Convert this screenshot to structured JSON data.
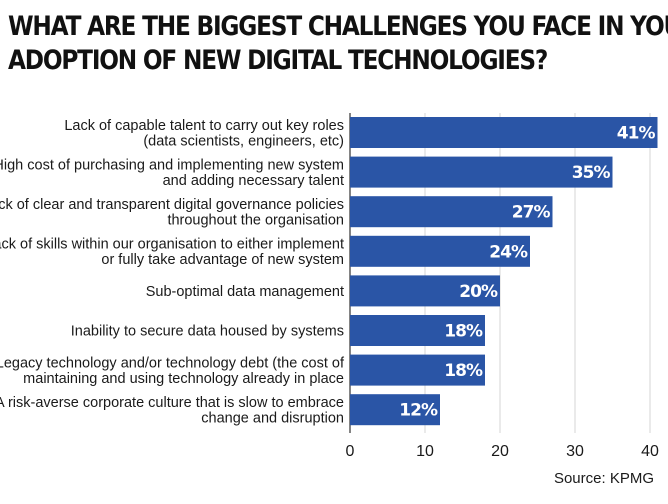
{
  "chart_data": {
    "type": "bar",
    "orientation": "horizontal",
    "title": "WHAT ARE THE BIGGEST CHALLENGES YOU FACE IN YOUR ADOPTION OF NEW DIGITAL TECHNOLOGIES?",
    "title_lines": [
      "WHAT ARE THE BIGGEST CHALLENGES YOU FACE IN YOUR",
      "ADOPTION OF NEW DIGITAL TECHNOLOGIES?"
    ],
    "categories": [
      [
        "Lack of capable talent to carry out key roles",
        "(data scientists, engineers, etc)"
      ],
      [
        "High cost of purchasing and implementing new system",
        "and adding necessary talent"
      ],
      [
        "Lack of clear and transparent digital governance policies",
        "throughout the organisation"
      ],
      [
        "Lack of skills within our organisation to either implement",
        "or fully take advantage of new system"
      ],
      [
        "Sub-optimal data management"
      ],
      [
        "Inability to secure data housed by systems"
      ],
      [
        "Legacy technology and/or technology debt (the cost of",
        "maintaining and using technology already in place"
      ],
      [
        "A risk-averse corporate culture that is slow to embrace",
        "change and disruption"
      ]
    ],
    "values": [
      41,
      35,
      27,
      24,
      20,
      18,
      18,
      12
    ],
    "value_labels": [
      "41%",
      "35%",
      "27%",
      "24%",
      "20%",
      "18%",
      "18%",
      "12%"
    ],
    "xlim": [
      0,
      40
    ],
    "xticks": [
      "0",
      "10",
      "20",
      "30",
      "40"
    ],
    "grid": true,
    "bar_color": "#2a55a6",
    "source": "Source: KPMG"
  }
}
